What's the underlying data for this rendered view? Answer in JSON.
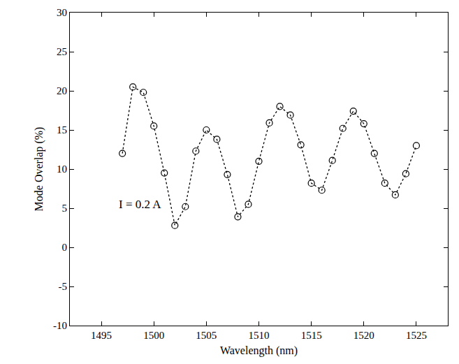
{
  "chart_data": {
    "type": "line",
    "x_label": "Wavelength (nm)",
    "y_label": "Mode Overlap (%)",
    "x": [
      1497,
      1498,
      1499,
      1500,
      1501,
      1502,
      1503,
      1504,
      1505,
      1506,
      1507,
      1508,
      1509,
      1510,
      1511,
      1512,
      1513,
      1514,
      1515,
      1516,
      1517,
      1518,
      1519,
      1520,
      1521,
      1522,
      1523,
      1524,
      1525
    ],
    "values": [
      12,
      20.5,
      19.8,
      15.5,
      9.5,
      2.8,
      5.2,
      12.3,
      15,
      13.8,
      9.3,
      3.9,
      5.5,
      11,
      15.9,
      18,
      16.9,
      13.1,
      8.2,
      7.3,
      11.1,
      15.2,
      17.4,
      15.8,
      12,
      8.2,
      6.7,
      9.4,
      13
    ],
    "color": "#000000",
    "marker": "open_circle",
    "line_style": "dotted",
    "xlim": [
      1492,
      1528
    ],
    "xticks": [
      1495,
      1500,
      1505,
      1510,
      1515,
      1520,
      1525
    ],
    "ylim": [
      -10,
      30
    ],
    "yticks": [
      -10,
      -5,
      0,
      5,
      10,
      15,
      20,
      25,
      30
    ],
    "grid": false,
    "annotations": [
      {
        "text": "I = 0.2 A",
        "x": 1496.5,
        "y": 5.5
      }
    ]
  }
}
